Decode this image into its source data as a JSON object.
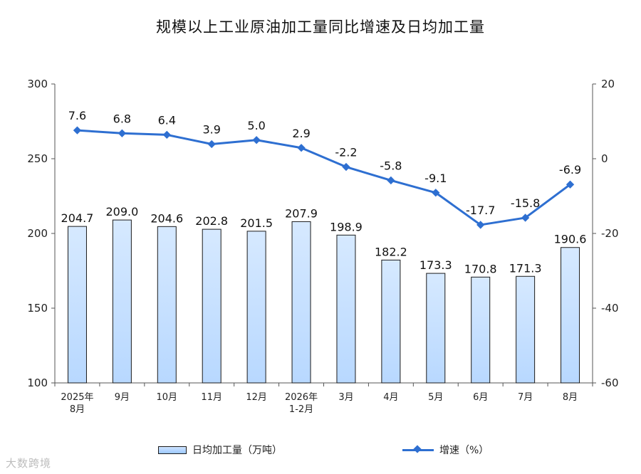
{
  "title": "规模以上工业原油加工量同比增速及日均加工量",
  "legend": {
    "bar_label": "日均加工量（万吨）",
    "line_label": "增速（%）"
  },
  "watermark": "大数跨境",
  "colors": {
    "bar_fill": "#b8d8ff",
    "bar_border": "#1a1a1a",
    "line": "#2e6fd1"
  },
  "chart_data": {
    "type": "bar",
    "title": "规模以上工业原油加工量同比增速及日均加工量",
    "categories": [
      [
        "2025年",
        "8月"
      ],
      [
        "9月"
      ],
      [
        "10月"
      ],
      [
        "11月"
      ],
      [
        "12月"
      ],
      [
        "2026年",
        "1-2月"
      ],
      [
        "3月"
      ],
      [
        "4月"
      ],
      [
        "5月"
      ],
      [
        "6月"
      ],
      [
        "7月"
      ],
      [
        "8月"
      ]
    ],
    "series": [
      {
        "name": "日均加工量（万吨）",
        "type": "bar",
        "axis": "left",
        "values": [
          204.7,
          209.0,
          204.6,
          202.8,
          201.5,
          207.9,
          198.9,
          182.2,
          173.3,
          170.8,
          171.3,
          190.6
        ],
        "labels": [
          "204.7",
          "209.0",
          "204.6",
          "202.8",
          "201.5",
          "207.9",
          "198.9",
          "182.2",
          "173.3",
          "170.8",
          "171.3",
          "190.6"
        ]
      },
      {
        "name": "增速（%）",
        "type": "line",
        "axis": "right",
        "values": [
          7.6,
          6.8,
          6.4,
          3.9,
          5.0,
          2.9,
          -2.2,
          -5.8,
          -9.1,
          -17.7,
          -15.8,
          -6.9
        ],
        "labels": [
          "7.6",
          "6.8",
          "6.4",
          "3.9",
          "5.0",
          "2.9",
          "-2.2",
          "-5.8",
          "-9.1",
          "-17.7",
          "-15.8",
          "-6.9"
        ]
      }
    ],
    "y_left": {
      "range": [
        100,
        300
      ],
      "ticks": [
        "100",
        "150",
        "200",
        "250",
        "300"
      ]
    },
    "y_right": {
      "range": [
        -60,
        20
      ],
      "ticks": [
        "-60",
        "-40",
        "-20",
        "0",
        "20"
      ]
    },
    "grid": false,
    "legend_position": "bottom"
  }
}
